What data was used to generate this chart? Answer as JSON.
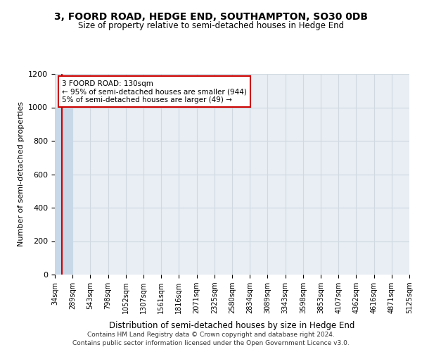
{
  "title": "3, FOORD ROAD, HEDGE END, SOUTHAMPTON, SO30 0DB",
  "subtitle": "Size of property relative to semi-detached houses in Hedge End",
  "xlabel": "Distribution of semi-detached houses by size in Hedge End",
  "ylabel": "Number of semi-detached properties",
  "property_size": 130,
  "annotation_line1": "3 FOORD ROAD: 130sqm",
  "annotation_line2": "← 95% of semi-detached houses are smaller (944)",
  "annotation_line3": "5% of semi-detached houses are larger (49) →",
  "bin_edges": [
    34,
    289,
    543,
    798,
    1052,
    1307,
    1561,
    1816,
    2071,
    2325,
    2580,
    2834,
    3089,
    3343,
    3598,
    3853,
    4107,
    4362,
    4616,
    4871,
    5125
  ],
  "bar_heights": [
    993,
    0,
    0,
    0,
    0,
    0,
    0,
    0,
    0,
    0,
    0,
    0,
    0,
    0,
    0,
    0,
    0,
    0,
    0,
    0
  ],
  "bar_color": "#c8d8e8",
  "bar_edge_color": "#c8d8e8",
  "property_line_color": "#cc0000",
  "annotation_box_color": "#cc0000",
  "grid_color": "#d0d8e0",
  "bg_color": "#e8eef4",
  "ylim": [
    0,
    1200
  ],
  "yticks": [
    0,
    200,
    400,
    600,
    800,
    1000,
    1200
  ],
  "footer_line1": "Contains HM Land Registry data © Crown copyright and database right 2024.",
  "footer_line2": "Contains public sector information licensed under the Open Government Licence v3.0."
}
